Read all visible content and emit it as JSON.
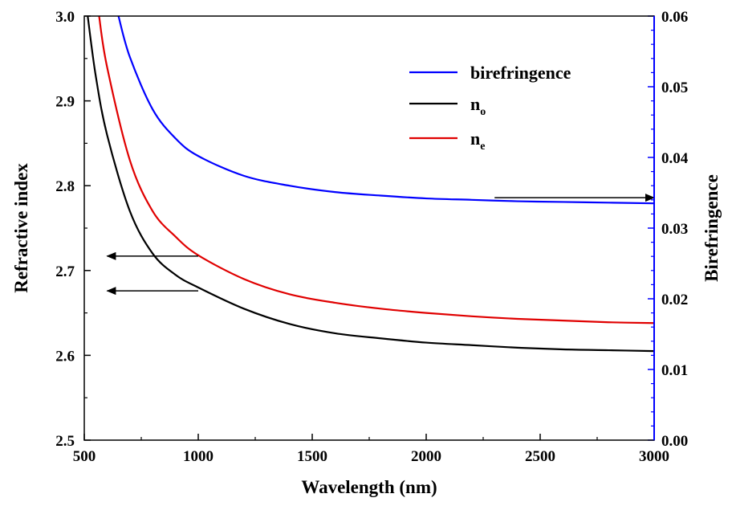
{
  "chart_data": {
    "type": "line",
    "xlabel": "Wavelength (nm)",
    "ylabel": "Refractive index",
    "y2label": "Birefringence",
    "xlim": [
      500,
      3000
    ],
    "ylim": [
      2.5,
      3.0
    ],
    "y2lim": [
      0.0,
      0.06
    ],
    "xticks": [
      "500",
      "1000",
      "1500",
      "2000",
      "2500",
      "3000"
    ],
    "yticks": [
      "2.5",
      "2.6",
      "2.7",
      "2.8",
      "2.9",
      "3.0"
    ],
    "y2ticks": [
      "0.00",
      "0.01",
      "0.02",
      "0.03",
      "0.04",
      "0.05",
      "0.06"
    ],
    "grid": false,
    "legend_position": "top-right",
    "series": [
      {
        "name": "birefringence",
        "axis": "right",
        "color": "#0000ff",
        "x": [
          650,
          700,
          800,
          900,
          1000,
          1200,
          1400,
          1600,
          1800,
          2000,
          2200,
          2400,
          2600,
          2800,
          3000
        ],
        "y": [
          0.06,
          0.0542,
          0.0468,
          0.0427,
          0.0402,
          0.0374,
          0.036,
          0.0351,
          0.0346,
          0.0342,
          0.034,
          0.0338,
          0.0337,
          0.0336,
          0.0335
        ]
      },
      {
        "name": "n_o",
        "label_main": "n",
        "label_sub": "o",
        "axis": "left",
        "color": "#000000",
        "x": [
          515,
          550,
          600,
          700,
          800,
          900,
          1000,
          1200,
          1400,
          1600,
          1800,
          2000,
          2200,
          2400,
          2600,
          2800,
          3000
        ],
        "y": [
          3.0,
          2.93,
          2.86,
          2.77,
          2.72,
          2.695,
          2.68,
          2.655,
          2.637,
          2.626,
          2.62,
          2.615,
          2.612,
          2.609,
          2.607,
          2.606,
          2.605
        ]
      },
      {
        "name": "n_e",
        "label_main": "n",
        "label_sub": "e",
        "axis": "left",
        "color": "#e00000",
        "x": [
          565,
          600,
          700,
          800,
          900,
          1000,
          1200,
          1400,
          1600,
          1800,
          2000,
          2200,
          2400,
          2600,
          2800,
          3000
        ],
        "y": [
          3.0,
          2.94,
          2.83,
          2.77,
          2.74,
          2.718,
          2.69,
          2.672,
          2.662,
          2.655,
          2.65,
          2.646,
          2.643,
          2.641,
          2.639,
          2.638
        ]
      }
    ],
    "annotations": [
      {
        "type": "arrow",
        "axis": "left",
        "from": [
          1000,
          2.717
        ],
        "to": [
          600,
          2.717
        ],
        "meaning": "n_e uses left axis"
      },
      {
        "type": "arrow",
        "axis": "left",
        "from": [
          1000,
          2.676
        ],
        "to": [
          600,
          2.676
        ],
        "meaning": "n_o uses left axis"
      },
      {
        "type": "arrow",
        "axis": "right",
        "from": [
          2300,
          0.0343
        ],
        "to": [
          3000,
          0.0343
        ],
        "meaning": "birefringence uses right axis"
      }
    ]
  }
}
